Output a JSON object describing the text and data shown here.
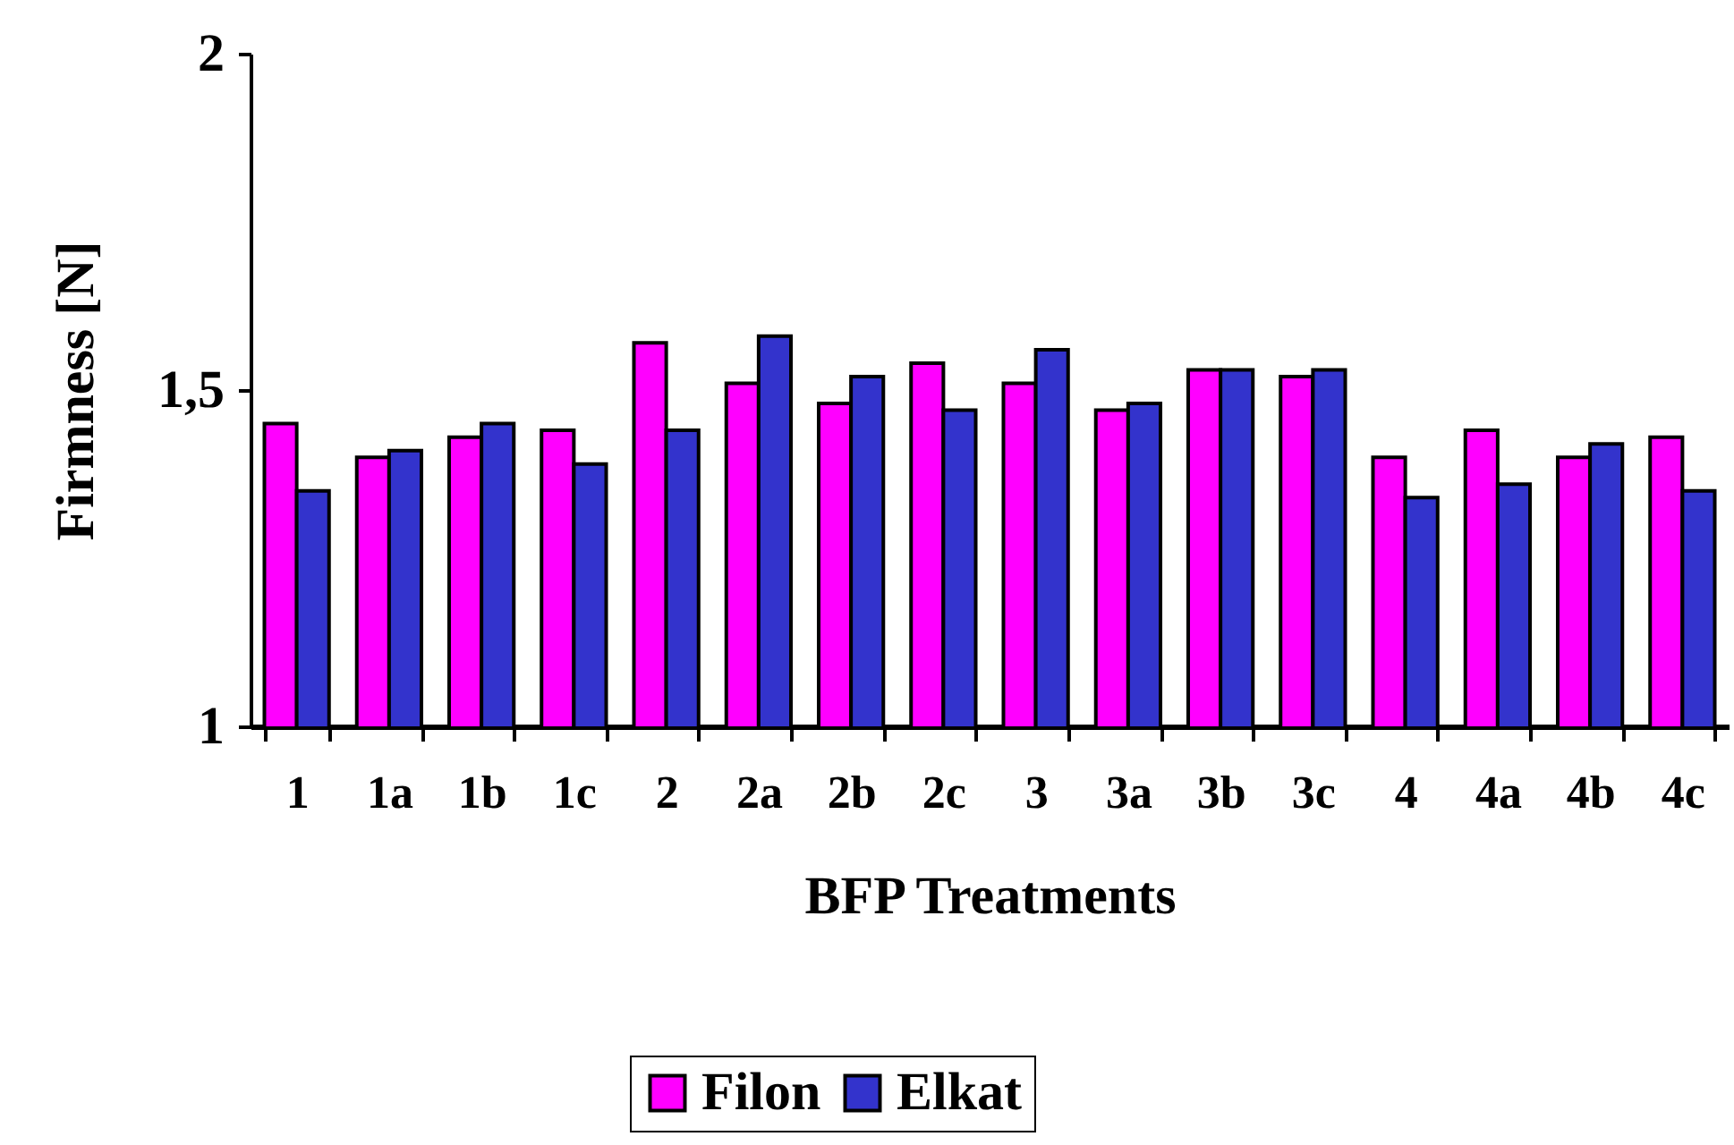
{
  "chart_data": {
    "type": "bar",
    "xlabel": "BFP Treatments",
    "ylabel": "Firmness [N]",
    "categories": [
      "1",
      "1a",
      "1b",
      "1c",
      "2",
      "2a",
      "2b",
      "2c",
      "3",
      "3a",
      "3b",
      "3c",
      "4",
      "4a",
      "4b",
      "4c"
    ],
    "series": [
      {
        "name": "Filon",
        "color": "#ff00ff",
        "values": [
          1.45,
          1.4,
          1.43,
          1.44,
          1.57,
          1.51,
          1.48,
          1.54,
          1.51,
          1.47,
          1.53,
          1.52,
          1.4,
          1.44,
          1.4,
          1.43
        ]
      },
      {
        "name": "Elkat",
        "color": "#3333cc",
        "values": [
          1.35,
          1.41,
          1.45,
          1.39,
          1.44,
          1.58,
          1.52,
          1.47,
          1.56,
          1.48,
          1.53,
          1.53,
          1.34,
          1.36,
          1.42,
          1.35
        ]
      }
    ],
    "ylim": [
      1,
      2
    ],
    "yticks": [
      1,
      {
        "value": 1.5,
        "label": "1,5"
      },
      2
    ],
    "grid": false,
    "legend": "bottom"
  }
}
